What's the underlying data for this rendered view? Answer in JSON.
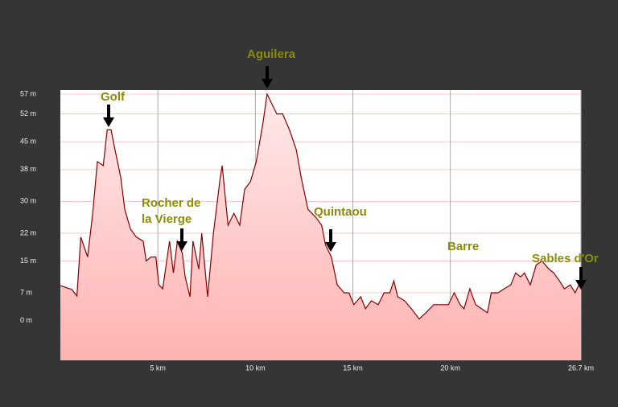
{
  "chart_data": {
    "type": "area",
    "x": [
      0,
      0.6,
      0.85,
      1.05,
      1.4,
      1.66,
      1.9,
      2.2,
      2.4,
      2.6,
      2.8,
      3.1,
      3.3,
      3.6,
      3.9,
      4.25,
      4.4,
      4.65,
      4.9,
      5.05,
      5.25,
      5.6,
      5.8,
      6.0,
      6.25,
      6.4,
      6.65,
      6.8,
      7.1,
      7.25,
      7.55,
      7.85,
      8.2,
      8.3,
      8.6,
      8.9,
      9.2,
      9.45,
      9.75,
      10.05,
      10.4,
      10.6,
      10.9,
      11.1,
      11.4,
      11.75,
      12.1,
      12.35,
      12.7,
      13.1,
      13.4,
      13.6,
      13.9,
      14.2,
      14.55,
      14.8,
      15.05,
      15.4,
      15.65,
      15.95,
      16.3,
      16.6,
      16.9,
      17.1,
      17.3,
      17.65,
      18.0,
      18.4,
      18.75,
      19.15,
      19.6,
      19.9,
      20.2,
      20.5,
      20.7,
      21.0,
      21.3,
      21.6,
      21.9,
      22.1,
      22.45,
      22.75,
      23.1,
      23.35,
      23.6,
      23.8,
      24.1,
      24.4,
      24.7,
      25.05,
      25.3,
      25.6,
      25.85,
      26.15,
      26.4,
      26.7
    ],
    "values": [
      8.8,
      7.8,
      6.2,
      21,
      16,
      27,
      40,
      39,
      48,
      48,
      43,
      36,
      28,
      23,
      21,
      20,
      15,
      16,
      16,
      9,
      8,
      20,
      12,
      20,
      17,
      11,
      6,
      20,
      13,
      22,
      6,
      22,
      36,
      39,
      24,
      27,
      24,
      33,
      35,
      40,
      50,
      57,
      54,
      52,
      52,
      48,
      43,
      36,
      28,
      26,
      24,
      19,
      16,
      9,
      7,
      7,
      4,
      6,
      3,
      5,
      4,
      7,
      7,
      10,
      6,
      5,
      3,
      0.4,
      2,
      4,
      4,
      4,
      7,
      4,
      3,
      8,
      4,
      3,
      2,
      7,
      7,
      8,
      9,
      12,
      11,
      12,
      9,
      14,
      15,
      13,
      12,
      10,
      8,
      9,
      7,
      10
    ],
    "color": "#8b0000",
    "xlim": [
      0,
      26.7
    ],
    "ylim": [
      -10,
      58
    ],
    "xticks": [
      {
        "value": 5,
        "label": "5 km"
      },
      {
        "value": 10,
        "label": "10 km"
      },
      {
        "value": 15,
        "label": "15 km"
      },
      {
        "value": 20,
        "label": "20 km"
      },
      {
        "value": 26.7,
        "label": "26.7 km"
      }
    ],
    "yticks": [
      {
        "value": 0,
        "label": "0 m"
      },
      {
        "value": 7,
        "label": "7 m"
      },
      {
        "value": 15,
        "label": "15 m"
      },
      {
        "value": 22,
        "label": "22 m"
      },
      {
        "value": 30,
        "label": "30 m"
      },
      {
        "value": 38,
        "label": "38 m"
      },
      {
        "value": 45,
        "label": "45 m"
      },
      {
        "value": 52,
        "label": "52 m"
      },
      {
        "value": 57,
        "label": "57 m"
      }
    ],
    "grid": true,
    "annotations": [
      {
        "lines": [
          "Golf"
        ]
      },
      {
        "lines": [
          "Aguilera"
        ]
      },
      {
        "lines": [
          "Rocher de",
          "la Vierge"
        ]
      },
      {
        "lines": [
          "Quintaou"
        ]
      },
      {
        "lines": [
          "Barre"
        ]
      },
      {
        "lines": [
          "Sables d'Or"
        ]
      }
    ]
  }
}
